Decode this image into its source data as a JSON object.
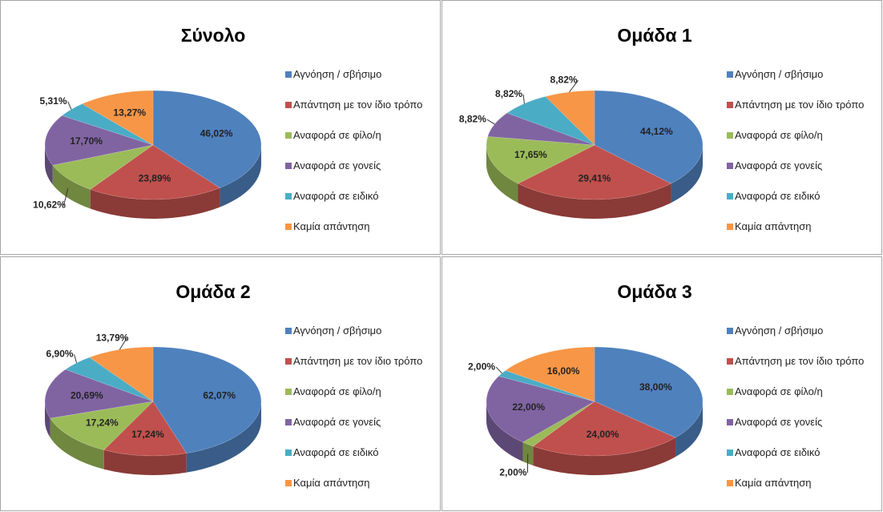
{
  "chart_data": [
    {
      "type": "pie",
      "title": "Σύνολο",
      "categories": [
        "Αγνόηση / σβήσιμο",
        "Απάντηση με τον ίδιο τρόπο",
        "Αναφορά σε φίλο/η",
        "Αναφορά σε γονείς",
        "Αναφορά σε ειδικό",
        "Καμία απάντηση"
      ],
      "values": [
        46.02,
        23.89,
        10.62,
        17.7,
        5.31,
        13.27
      ],
      "value_labels": [
        "46,02%",
        "23,89%",
        "10,62%",
        "17,70%",
        "5,31%",
        "13,27%"
      ],
      "colors": [
        "#4f81bd",
        "#c0504d",
        "#9bbb59",
        "#8064a2",
        "#4bacc6",
        "#f79646"
      ]
    },
    {
      "type": "pie",
      "title": "Ομάδα 1",
      "categories": [
        "Αγνόηση / σβήσιμο",
        "Απάντηση με τον ίδιο τρόπο",
        "Αναφορά σε φίλο/η",
        "Αναφορά σε γονείς",
        "Αναφορά σε ειδικό",
        "Καμία απάντηση"
      ],
      "values": [
        44.12,
        29.41,
        17.65,
        8.82,
        8.82,
        8.82
      ],
      "value_labels": [
        "44,12%",
        "29,41%",
        "17,65%",
        "8,82%",
        "8,82%",
        "8,82%"
      ],
      "colors": [
        "#4f81bd",
        "#c0504d",
        "#9bbb59",
        "#8064a2",
        "#4bacc6",
        "#f79646"
      ]
    },
    {
      "type": "pie",
      "title": "Ομάδα 2",
      "categories": [
        "Αγνόηση / σβήσιμο",
        "Απάντηση με τον ίδιο τρόπο",
        "Αναφορά σε φίλο/η",
        "Αναφορά σε γονείς",
        "Αναφορά σε ειδικό",
        "Καμία απάντηση"
      ],
      "values": [
        62.07,
        17.24,
        17.24,
        20.69,
        6.9,
        13.79
      ],
      "value_labels": [
        "62,07%",
        "17,24%",
        "17,24%",
        "20,69%",
        "6,90%",
        "13,79%"
      ],
      "colors": [
        "#4f81bd",
        "#c0504d",
        "#9bbb59",
        "#8064a2",
        "#4bacc6",
        "#f79646"
      ]
    },
    {
      "type": "pie",
      "title": "Ομάδα 3",
      "categories": [
        "Αγνόηση / σβήσιμο",
        "Απάντηση με τον ίδιο τρόπο",
        "Αναφορά σε φίλο/η",
        "Αναφορά σε γονείς",
        "Αναφορά σε ειδικό",
        "Καμία απάντηση"
      ],
      "values": [
        38.0,
        24.0,
        2.0,
        22.0,
        2.0,
        16.0
      ],
      "value_labels": [
        "38,00%",
        "24,00%",
        "2,00%",
        "22,00%",
        "2,00%",
        "16,00%"
      ],
      "colors": [
        "#4f81bd",
        "#c0504d",
        "#9bbb59",
        "#8064a2",
        "#4bacc6",
        "#f79646"
      ]
    }
  ]
}
